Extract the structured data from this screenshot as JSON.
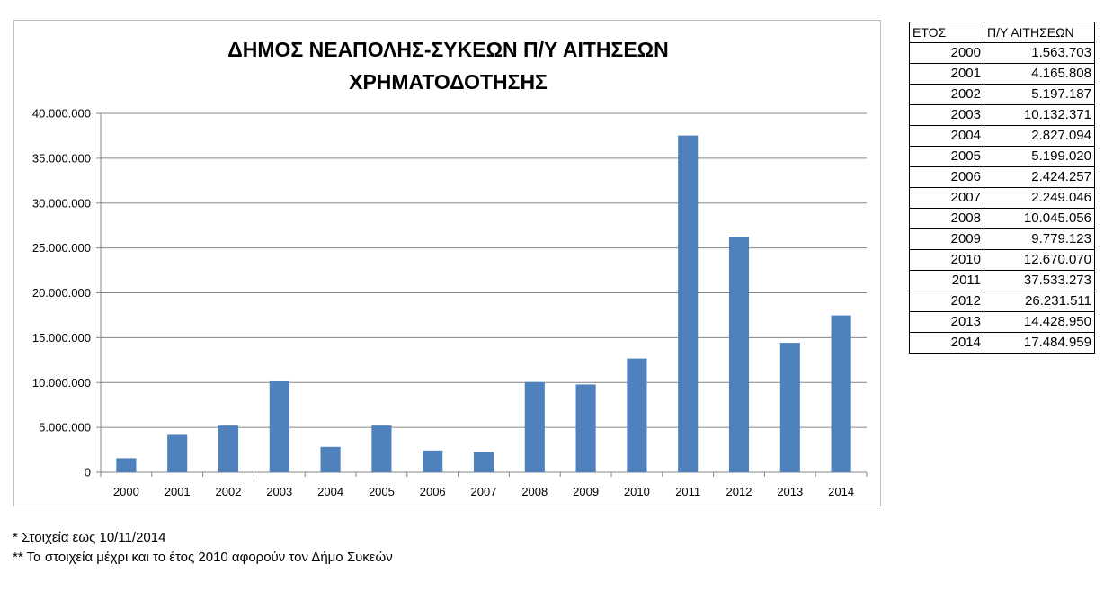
{
  "chart_data": {
    "type": "bar",
    "title_lines": [
      "ΔΗΜΟΣ ΝΕΑΠΟΛΗΣ-ΣΥΚΕΩΝ Π/Υ ΑΙΤΗΣΕΩΝ",
      "ΧΡΗΜΑΤΟΔΟΤΗΣΗΣ"
    ],
    "categories": [
      "2000",
      "2001",
      "2002",
      "2003",
      "2004",
      "2005",
      "2006",
      "2007",
      "2008",
      "2009",
      "2010",
      "2011",
      "2012",
      "2013",
      "2014"
    ],
    "values": [
      1563703,
      4165808,
      5197187,
      10132371,
      2827094,
      5199020,
      2424257,
      2249046,
      10045056,
      9779123,
      12670070,
      37533273,
      26231511,
      14428950,
      17484959
    ],
    "ylim": [
      0,
      40000000
    ],
    "yticks": [
      0,
      5000000,
      10000000,
      15000000,
      20000000,
      25000000,
      30000000,
      35000000,
      40000000
    ],
    "ytick_labels": [
      "0",
      "5.000.000",
      "10.000.000",
      "15.000.000",
      "20.000.000",
      "25.000.000",
      "30.000.000",
      "35.000.000",
      "40.000.000"
    ],
    "bar_color": "#4f81bd",
    "grid": true,
    "legend": "none"
  },
  "table": {
    "headers": [
      "ΕΤΟΣ",
      "Π/Υ ΑΙΤΗΣΕΩΝ"
    ],
    "rows": [
      [
        "2000",
        "1.563.703"
      ],
      [
        "2001",
        "4.165.808"
      ],
      [
        "2002",
        "5.197.187"
      ],
      [
        "2003",
        "10.132.371"
      ],
      [
        "2004",
        "2.827.094"
      ],
      [
        "2005",
        "5.199.020"
      ],
      [
        "2006",
        "2.424.257"
      ],
      [
        "2007",
        "2.249.046"
      ],
      [
        "2008",
        "10.045.056"
      ],
      [
        "2009",
        "9.779.123"
      ],
      [
        "2010",
        "12.670.070"
      ],
      [
        "2011",
        "37.533.273"
      ],
      [
        "2012",
        "26.231.511"
      ],
      [
        "2013",
        "14.428.950"
      ],
      [
        "2014",
        "17.484.959"
      ]
    ]
  },
  "notes": [
    "* Στοιχεία εως 10/11/2014",
    "** Τα στοιχεία μέχρι και το έτος 2010 αφορούν τον Δήμο Συκεών"
  ]
}
